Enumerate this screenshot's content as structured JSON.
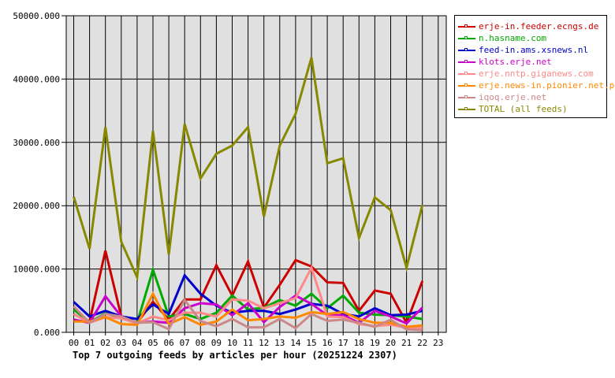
{
  "chart_data": {
    "type": "line",
    "title": "Top 7 outgoing feeds by articles per hour (20251224 2307)",
    "xlabel": "",
    "ylabel": "",
    "ylim": [
      0,
      50000
    ],
    "grid": true,
    "legend_position": "right",
    "categories": [
      "00",
      "01",
      "02",
      "03",
      "04",
      "05",
      "06",
      "07",
      "08",
      "09",
      "10",
      "11",
      "12",
      "13",
      "14",
      "15",
      "16",
      "17",
      "18",
      "19",
      "20",
      "21",
      "22",
      "23"
    ],
    "y_ticks": [
      0,
      10000,
      20000,
      30000,
      40000,
      50000
    ],
    "y_tick_labels": [
      "0.000",
      "10000.000",
      "20000.000",
      "30000.000",
      "40000.000",
      "50000.000"
    ],
    "series": [
      {
        "name": "erje-in.feeder.ecngs.de",
        "color": "#cc0000",
        "values": [
          1800,
          1700,
          12900,
          2500,
          1500,
          4800,
          2000,
          5200,
          5200,
          10600,
          5800,
          11200,
          3900,
          7500,
          11400,
          10400,
          7900,
          7800,
          3400,
          6600,
          6100,
          1500,
          8100
        ]
      },
      {
        "name": "n.hasname.com",
        "color": "#00aa00",
        "values": [
          3600,
          1600,
          3000,
          2300,
          1500,
          9900,
          2500,
          2900,
          2100,
          3100,
          5800,
          3600,
          3900,
          5100,
          4200,
          6100,
          3800,
          5800,
          3100,
          2800,
          2700,
          2500,
          2100
        ]
      },
      {
        "name": "feed-in.ams.xsnews.nl",
        "color": "#0000cc",
        "values": [
          4800,
          2500,
          3400,
          2500,
          2100,
          4400,
          2900,
          9000,
          6100,
          4200,
          3100,
          3400,
          3400,
          2900,
          3600,
          4500,
          4200,
          2900,
          2500,
          3800,
          2700,
          2800,
          3400
        ]
      },
      {
        "name": "klots.erje.net",
        "color": "#cc00cc",
        "values": [
          2000,
          1500,
          5700,
          2500,
          1500,
          1700,
          1500,
          3800,
          4600,
          4400,
          2700,
          4600,
          1600,
          4000,
          5800,
          4500,
          2700,
          2700,
          1500,
          3400,
          2500,
          1400,
          3900
        ]
      },
      {
        "name": "erje.nntp.giganews.com",
        "color": "#ff8888",
        "values": [
          2900,
          1500,
          2400,
          2200,
          1400,
          2500,
          1900,
          3100,
          3100,
          2500,
          5200,
          5000,
          3800,
          4600,
          5400,
          10200,
          2500,
          2400,
          1300,
          1000,
          1200,
          750,
          660
        ]
      },
      {
        "name": "erje.news-in.pionier.net.pl",
        "color": "#ff8800",
        "values": [
          1700,
          1700,
          2400,
          1300,
          1200,
          6100,
          1300,
          2400,
          1200,
          1700,
          3600,
          1900,
          2100,
          2500,
          2300,
          3200,
          2900,
          3200,
          2100,
          1500,
          1500,
          870,
          1100
        ]
      },
      {
        "name": "iqoq.erje.net",
        "color": "#cc8888",
        "values": [
          4100,
          1500,
          2900,
          2500,
          1500,
          1600,
          500,
          5100,
          1800,
          960,
          2100,
          800,
          800,
          2100,
          660,
          2900,
          1800,
          2000,
          1500,
          870,
          2000,
          460,
          340
        ]
      },
      {
        "name": "TOTAL (all feeds)",
        "color": "#888800",
        "values": [
          21400,
          13200,
          32400,
          14300,
          8700,
          31800,
          12300,
          32900,
          24300,
          28200,
          29500,
          32400,
          18300,
          29500,
          34500,
          43400,
          26700,
          27500,
          14900,
          21300,
          19300,
          10200,
          20100
        ]
      }
    ]
  },
  "legend": {
    "items": [
      {
        "label": "erje-in.feeder.ecngs.de",
        "color": "#cc0000"
      },
      {
        "label": "n.hasname.com",
        "color": "#00aa00"
      },
      {
        "label": "feed-in.ams.xsnews.nl",
        "color": "#0000cc"
      },
      {
        "label": "klots.erje.net",
        "color": "#cc00cc"
      },
      {
        "label": "erje.nntp.giganews.com",
        "color": "#ff8888"
      },
      {
        "label": "erje.news-in.pionier.net.pl",
        "color": "#ff8800"
      },
      {
        "label": "iqoq.erje.net",
        "color": "#cc8888"
      },
      {
        "label": "TOTAL (all feeds)",
        "color": "#888800"
      }
    ]
  },
  "colors": {
    "plot_background": "#e0e0e0",
    "grid": "#000000",
    "page_background": "#ffffff"
  }
}
